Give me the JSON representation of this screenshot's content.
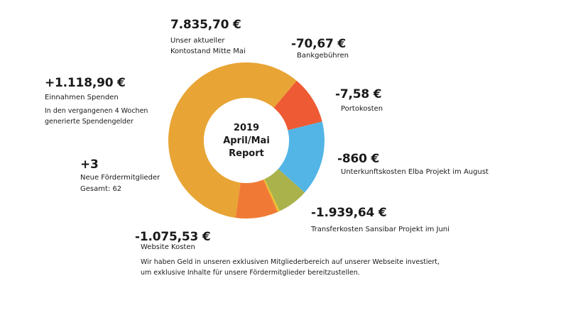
{
  "center": {
    "line1": "2019",
    "line2": "April/Mai",
    "line3": "Report"
  },
  "annotations": {
    "balance": {
      "amount": "7.835,70 €",
      "label_line1": "Unser aktueller",
      "label_line2": "Kontostand Mitte Mai"
    },
    "bank_fees": {
      "amount": "-70,67 €",
      "label": "Bankgebühren"
    },
    "postage": {
      "amount": "-7,58 €",
      "label": "Portokosten"
    },
    "lodging": {
      "amount": "-860 €",
      "label": "Unterkunftskosten Elba Projekt im August"
    },
    "transfer": {
      "amount": "-1.939,64 €",
      "label": "Transferkosten Sansibar Projekt im Juni"
    },
    "website": {
      "amount": "-1.075,53 €",
      "label": "Website Kosten",
      "desc_line1": "Wir haben Geld in unseren exklusiven Mitgliederbereich auf unserer Webseite investiert,",
      "desc_line2": "um exklusive Inhalte für unsere Fördermitglieder bereitzustellen."
    },
    "members": {
      "amount": "+3",
      "label_line1": "Neue Fördermitglieder",
      "label_line2": "Gesamt: 62"
    },
    "donations": {
      "amount": "+1.118,90 €",
      "label": "Einnahmen Spenden",
      "desc_line1": "In den vergangenen 4 Wochen",
      "desc_line2": "generierte Spendengelder"
    }
  },
  "chart_data": {
    "type": "pie",
    "title": "",
    "start_angle_deg": 40,
    "slices": [
      {
        "key": "bank",
        "value": 10.0,
        "color": "#ee5a33"
      },
      {
        "key": "lodging",
        "value": 15.5,
        "color": "#53b5e6"
      },
      {
        "key": "transfer",
        "value": 6.4,
        "color": "#aab24b"
      },
      {
        "key": "postage",
        "value": 0.4,
        "color": "#f0c22c"
      },
      {
        "key": "postage2",
        "value": 0.3,
        "color": "#ef7a2d"
      },
      {
        "key": "website",
        "value": 8.5,
        "color": "#f07a35"
      },
      {
        "key": "balance",
        "value": 58.9,
        "color": "#e8a434"
      }
    ]
  }
}
